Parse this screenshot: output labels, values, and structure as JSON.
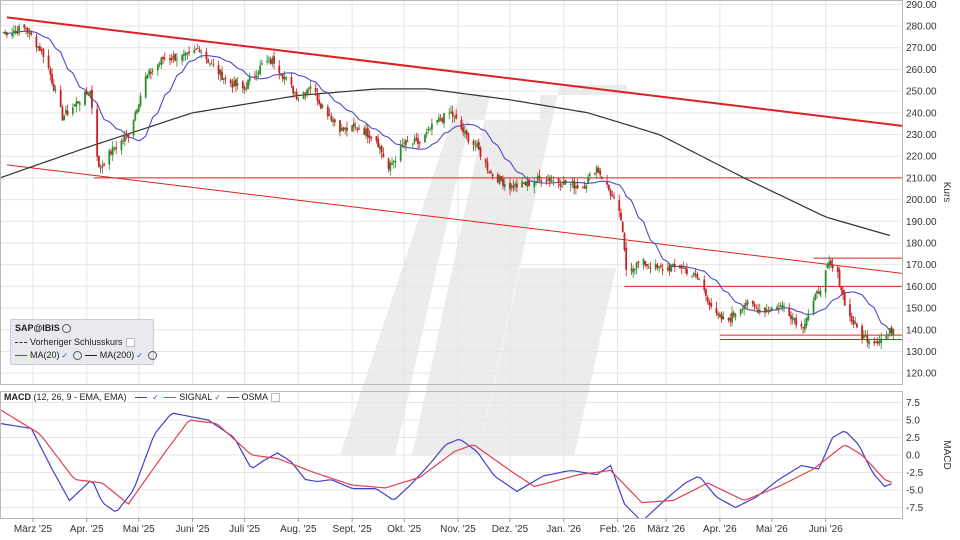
{
  "price_panel": {
    "y_axis_label": "Kurs",
    "y_ticks": [
      "290.00",
      "280.00",
      "270.00",
      "260.00",
      "250.00",
      "240.00",
      "230.00",
      "220.00",
      "210.00",
      "200.00",
      "190.00",
      "180.00",
      "170.00",
      "160.00",
      "150.00",
      "140.00",
      "130.00",
      "120.00"
    ],
    "legend": {
      "ticker": "SAP@IBIS",
      "prev_close_label": "Vorheriger Schlusskurs",
      "ma20_label": "MA(20)",
      "ma200_label": "MA(200)"
    }
  },
  "macd_panel": {
    "title": "MACD",
    "params": "(12, 26, 9 - EMA, EMA)",
    "signal_label": "SIGNAL",
    "osma_label": "OSMA",
    "y_axis_label": "MACD",
    "y_ticks": [
      "7.5",
      "5.0",
      "2.5",
      "0.0",
      "-2.5",
      "-5.0",
      "-7.5"
    ]
  },
  "x_ticks": [
    "März '25",
    "Apr. '25",
    "Mai '25",
    "Juni '25",
    "Juli '25",
    "Aug. '25",
    "Sept. '25",
    "Okt. '25",
    "Nov. '25",
    "Dez. '25",
    "Jan. '26",
    "Feb. '26",
    "März '26",
    "Apr. '26",
    "Mai '26",
    "Juni '26"
  ],
  "colors": {
    "candle_up": "#2e8b2e",
    "candle_down": "#c62020",
    "ma20": "#4a4ad0",
    "ma200": "#333333",
    "trendline": "#e02020",
    "signal": "#e04050",
    "macd": "#4040c8",
    "grid": "#e6e6e6"
  },
  "chart_data": [
    {
      "type": "candlestick",
      "title": "SAP@IBIS",
      "ylabel": "Kurs",
      "ylim": [
        115,
        292
      ],
      "xlim": [
        "2025-02-10",
        "2026-07-15"
      ],
      "grid": true,
      "legend_position": "bottom-left",
      "close_anchors": [
        {
          "date": "2025-02-12",
          "close": 277
        },
        {
          "date": "2025-02-25",
          "close": 279
        },
        {
          "date": "2025-03-08",
          "close": 266
        },
        {
          "date": "2025-03-18",
          "close": 238
        },
        {
          "date": "2025-03-28",
          "close": 246
        },
        {
          "date": "2025-04-03",
          "close": 250
        },
        {
          "date": "2025-04-08",
          "close": 214
        },
        {
          "date": "2025-04-15",
          "close": 222
        },
        {
          "date": "2025-04-25",
          "close": 230
        },
        {
          "date": "2025-05-05",
          "close": 256
        },
        {
          "date": "2025-05-15",
          "close": 265
        },
        {
          "date": "2025-05-30",
          "close": 266
        },
        {
          "date": "2025-06-05",
          "close": 270
        },
        {
          "date": "2025-06-12",
          "close": 262
        },
        {
          "date": "2025-06-22",
          "close": 254
        },
        {
          "date": "2025-06-30",
          "close": 251
        },
        {
          "date": "2025-07-12",
          "close": 263
        },
        {
          "date": "2025-07-18",
          "close": 264
        },
        {
          "date": "2025-07-25",
          "close": 255
        },
        {
          "date": "2025-08-01",
          "close": 247
        },
        {
          "date": "2025-08-08",
          "close": 253
        },
        {
          "date": "2025-08-14",
          "close": 244
        },
        {
          "date": "2025-08-20",
          "close": 238
        },
        {
          "date": "2025-08-26",
          "close": 232
        },
        {
          "date": "2025-09-05",
          "close": 233
        },
        {
          "date": "2025-09-15",
          "close": 228
        },
        {
          "date": "2025-09-22",
          "close": 214
        },
        {
          "date": "2025-10-01",
          "close": 226
        },
        {
          "date": "2025-10-10",
          "close": 226
        },
        {
          "date": "2025-10-20",
          "close": 236
        },
        {
          "date": "2025-10-28",
          "close": 240
        },
        {
          "date": "2025-11-05",
          "close": 230
        },
        {
          "date": "2025-11-12",
          "close": 224
        },
        {
          "date": "2025-11-20",
          "close": 212
        },
        {
          "date": "2025-12-01",
          "close": 206
        },
        {
          "date": "2025-12-10",
          "close": 207
        },
        {
          "date": "2025-12-20",
          "close": 210
        },
        {
          "date": "2026-01-05",
          "close": 207
        },
        {
          "date": "2026-01-12",
          "close": 206
        },
        {
          "date": "2026-01-20",
          "close": 215
        },
        {
          "date": "2026-01-28",
          "close": 203
        },
        {
          "date": "2026-02-03",
          "close": 191
        },
        {
          "date": "2026-02-06",
          "close": 168
        },
        {
          "date": "2026-02-15",
          "close": 171
        },
        {
          "date": "2026-02-25",
          "close": 168
        },
        {
          "date": "2026-03-10",
          "close": 169
        },
        {
          "date": "2026-03-20",
          "close": 163
        },
        {
          "date": "2026-03-30",
          "close": 146
        },
        {
          "date": "2026-04-05",
          "close": 144
        },
        {
          "date": "2026-04-15",
          "close": 152
        },
        {
          "date": "2026-04-25",
          "close": 149
        },
        {
          "date": "2026-05-08",
          "close": 151
        },
        {
          "date": "2026-05-18",
          "close": 141
        },
        {
          "date": "2026-05-28",
          "close": 158
        },
        {
          "date": "2026-06-03",
          "close": 170
        },
        {
          "date": "2026-06-08",
          "close": 165
        },
        {
          "date": "2026-06-14",
          "close": 147
        },
        {
          "date": "2026-06-22",
          "close": 137
        },
        {
          "date": "2026-06-30",
          "close": 135
        },
        {
          "date": "2026-07-06",
          "close": 137
        },
        {
          "date": "2026-07-10",
          "close": 141
        }
      ],
      "ma200_anchors": [
        {
          "date": "2025-02-10",
          "value": 210
        },
        {
          "date": "2025-04-01",
          "value": 224
        },
        {
          "date": "2025-06-01",
          "value": 240
        },
        {
          "date": "2025-08-01",
          "value": 248
        },
        {
          "date": "2025-09-15",
          "value": 251
        },
        {
          "date": "2025-10-15",
          "value": 251
        },
        {
          "date": "2025-12-01",
          "value": 246
        },
        {
          "date": "2026-01-15",
          "value": 240
        },
        {
          "date": "2026-02-25",
          "value": 230
        },
        {
          "date": "2026-04-15",
          "value": 210
        },
        {
          "date": "2026-06-01",
          "value": 192
        },
        {
          "date": "2026-07-10",
          "value": 183
        }
      ],
      "trendlines": [
        {
          "from": {
            "date": "2025-02-14",
            "value": 284
          },
          "to": {
            "date": "2026-07-15",
            "value": 234
          }
        },
        {
          "from": {
            "date": "2025-02-14",
            "value": 216
          },
          "to": {
            "date": "2026-07-15",
            "value": 166
          }
        }
      ],
      "horizontal_levels": [
        {
          "value": 210,
          "from": "2025-04-05",
          "to": "2026-07-15"
        },
        {
          "value": 160,
          "from": "2026-02-05",
          "to": "2026-07-15"
        },
        {
          "value": 173,
          "from": "2026-05-25",
          "to": "2026-07-15"
        },
        {
          "value": 137.5,
          "from": "2026-04-01",
          "to": "2026-07-15"
        },
        {
          "value": 135.5,
          "from": "2026-04-01",
          "to": "2026-07-15"
        }
      ]
    },
    {
      "type": "line",
      "title": "MACD",
      "ylabel": "MACD",
      "ylim": [
        -9,
        9
      ],
      "xlim": [
        "2025-02-10",
        "2026-07-15"
      ],
      "grid": true,
      "series": [
        {
          "name": "MACD",
          "points": [
            {
              "date": "2025-02-10",
              "value": 4.5
            },
            {
              "date": "2025-02-28",
              "value": 3.8
            },
            {
              "date": "2025-03-12",
              "value": -2
            },
            {
              "date": "2025-03-22",
              "value": -6.5
            },
            {
              "date": "2025-04-04",
              "value": -3.5
            },
            {
              "date": "2025-04-10",
              "value": -6.8
            },
            {
              "date": "2025-04-18",
              "value": -8.2
            },
            {
              "date": "2025-04-28",
              "value": -5
            },
            {
              "date": "2025-05-10",
              "value": 3
            },
            {
              "date": "2025-05-20",
              "value": 6
            },
            {
              "date": "2025-06-10",
              "value": 5
            },
            {
              "date": "2025-06-25",
              "value": 2.5
            },
            {
              "date": "2025-07-05",
              "value": -2
            },
            {
              "date": "2025-07-12",
              "value": -0.8
            },
            {
              "date": "2025-07-20",
              "value": 0.3
            },
            {
              "date": "2025-07-28",
              "value": -1
            },
            {
              "date": "2025-08-05",
              "value": -3.5
            },
            {
              "date": "2025-08-12",
              "value": -3.8
            },
            {
              "date": "2025-08-20",
              "value": -3.5
            },
            {
              "date": "2025-09-01",
              "value": -4.8
            },
            {
              "date": "2025-09-15",
              "value": -4.8
            },
            {
              "date": "2025-09-25",
              "value": -6.5
            },
            {
              "date": "2025-10-05",
              "value": -4.2
            },
            {
              "date": "2025-10-15",
              "value": -1.5
            },
            {
              "date": "2025-10-25",
              "value": 1.5
            },
            {
              "date": "2025-11-02",
              "value": 2.3
            },
            {
              "date": "2025-11-12",
              "value": 0.5
            },
            {
              "date": "2025-11-22",
              "value": -3
            },
            {
              "date": "2025-12-05",
              "value": -5.2
            },
            {
              "date": "2025-12-20",
              "value": -3
            },
            {
              "date": "2026-01-05",
              "value": -2.2
            },
            {
              "date": "2026-01-20",
              "value": -2.8
            },
            {
              "date": "2026-01-28",
              "value": -1.5
            },
            {
              "date": "2026-02-05",
              "value": -7
            },
            {
              "date": "2026-02-15",
              "value": -9.5
            },
            {
              "date": "2026-02-28",
              "value": -6.5
            },
            {
              "date": "2026-03-12",
              "value": -4
            },
            {
              "date": "2026-03-20",
              "value": -3
            },
            {
              "date": "2026-03-30",
              "value": -6
            },
            {
              "date": "2026-04-10",
              "value": -7.5
            },
            {
              "date": "2026-04-22",
              "value": -6
            },
            {
              "date": "2026-05-05",
              "value": -3.5
            },
            {
              "date": "2026-05-18",
              "value": -1.5
            },
            {
              "date": "2026-05-28",
              "value": -2
            },
            {
              "date": "2026-06-05",
              "value": 2.5
            },
            {
              "date": "2026-06-12",
              "value": 3.5
            },
            {
              "date": "2026-06-20",
              "value": 1.5
            },
            {
              "date": "2026-06-28",
              "value": -2.5
            },
            {
              "date": "2026-07-05",
              "value": -4.5
            },
            {
              "date": "2026-07-10",
              "value": -4
            }
          ]
        },
        {
          "name": "SIGNAL",
          "points": [
            {
              "date": "2025-02-10",
              "value": 6.5
            },
            {
              "date": "2025-03-05",
              "value": 3
            },
            {
              "date": "2025-03-25",
              "value": -3.5
            },
            {
              "date": "2025-04-10",
              "value": -4
            },
            {
              "date": "2025-04-25",
              "value": -7
            },
            {
              "date": "2025-05-15",
              "value": 0
            },
            {
              "date": "2025-05-30",
              "value": 5
            },
            {
              "date": "2025-06-15",
              "value": 4.5
            },
            {
              "date": "2025-07-05",
              "value": 0
            },
            {
              "date": "2025-07-20",
              "value": -0.5
            },
            {
              "date": "2025-08-10",
              "value": -2.5
            },
            {
              "date": "2025-09-01",
              "value": -4.3
            },
            {
              "date": "2025-09-20",
              "value": -4.7
            },
            {
              "date": "2025-10-10",
              "value": -3.2
            },
            {
              "date": "2025-10-30",
              "value": 0.5
            },
            {
              "date": "2025-11-10",
              "value": 1.5
            },
            {
              "date": "2025-12-01",
              "value": -2.2
            },
            {
              "date": "2025-12-15",
              "value": -4.5
            },
            {
              "date": "2026-01-10",
              "value": -2.8
            },
            {
              "date": "2026-01-28",
              "value": -2.2
            },
            {
              "date": "2026-02-15",
              "value": -6.8
            },
            {
              "date": "2026-03-05",
              "value": -6.5
            },
            {
              "date": "2026-03-25",
              "value": -4
            },
            {
              "date": "2026-04-15",
              "value": -6.5
            },
            {
              "date": "2026-05-05",
              "value": -4.5
            },
            {
              "date": "2026-05-25",
              "value": -2
            },
            {
              "date": "2026-06-12",
              "value": 1.5
            },
            {
              "date": "2026-06-22",
              "value": 0
            },
            {
              "date": "2026-07-05",
              "value": -3.5
            },
            {
              "date": "2026-07-10",
              "value": -4
            }
          ]
        }
      ]
    }
  ]
}
